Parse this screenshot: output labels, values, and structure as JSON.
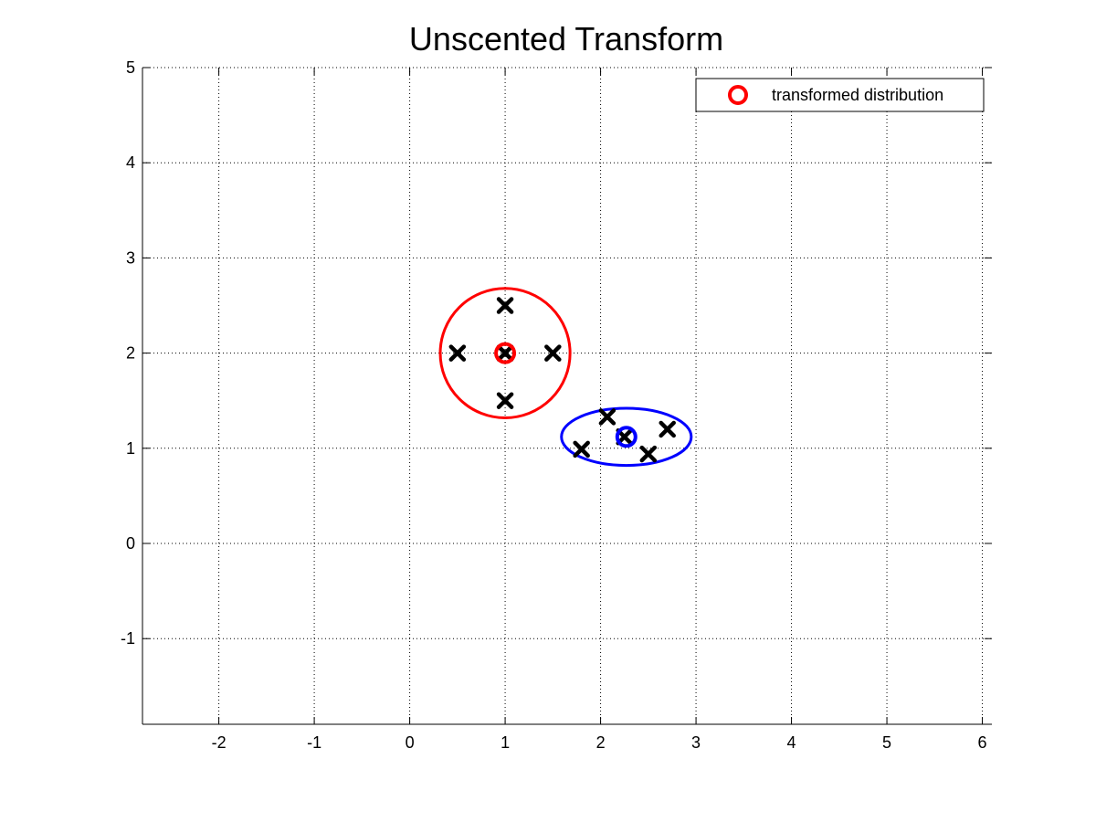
{
  "chart_data": {
    "type": "scatter",
    "title": "Unscented Transform",
    "xlabel": "",
    "ylabel": "",
    "xlim": [
      -2.8,
      6.1
    ],
    "ylim": [
      -1.9,
      5
    ],
    "xticks": [
      -2,
      -1,
      0,
      1,
      2,
      3,
      4,
      5,
      6
    ],
    "yticks": [
      -1,
      0,
      1,
      2,
      3,
      4,
      5
    ],
    "xtick_labels": [
      "-2",
      "-1",
      "0",
      "1",
      "2",
      "3",
      "4",
      "5",
      "6"
    ],
    "ytick_labels": [
      "-1",
      "0",
      "1",
      "2",
      "3",
      "4",
      "5"
    ],
    "grid": true,
    "legend_position": "top-right",
    "legend": [
      {
        "label": "transformed distribution",
        "color": "#ff0000",
        "marker": "circle"
      }
    ],
    "series": [
      {
        "kind": "ellipse",
        "color": "#ff0000",
        "center": [
          1.0,
          2.0
        ],
        "radius_x": 0.68,
        "radius_y": 0.68,
        "rotation_deg": 0
      },
      {
        "kind": "mean-marker",
        "color": "#ff0000",
        "x": [
          1.0
        ],
        "y": [
          2.0
        ]
      },
      {
        "kind": "sigma-points",
        "color": "#000000",
        "x": [
          1.0,
          1.0,
          1.0,
          0.5,
          1.5
        ],
        "y": [
          2.0,
          2.5,
          1.5,
          2.0,
          2.0
        ]
      },
      {
        "kind": "ellipse",
        "color": "#0000ff",
        "center": [
          2.27,
          1.12
        ],
        "radius_x": 0.68,
        "radius_y": 0.3,
        "rotation_deg": 0
      },
      {
        "kind": "mean-marker",
        "color": "#0000ff",
        "x": [
          2.27
        ],
        "y": [
          1.12
        ]
      },
      {
        "kind": "sigma-points",
        "color": "#000000",
        "x": [
          2.25,
          2.07,
          1.8,
          2.5,
          2.7
        ],
        "y": [
          1.12,
          1.33,
          0.99,
          0.94,
          1.2
        ]
      }
    ]
  }
}
